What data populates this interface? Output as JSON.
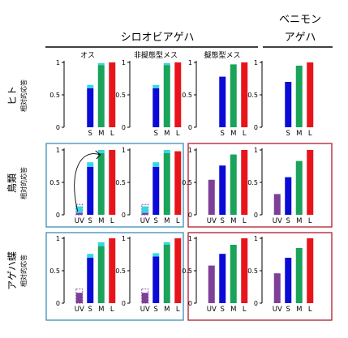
{
  "header": {
    "group_left": "シロオビアゲハ",
    "group_right_line1": "ベニモン",
    "group_right_line2": "アゲハ",
    "columns": [
      "オス",
      "非擬態型メス",
      "擬態型メス",
      ""
    ]
  },
  "rows": [
    {
      "line1": "ヒト",
      "line2": "相対的応答"
    },
    {
      "line1": "鳥類",
      "line2": "相対的応答"
    },
    {
      "line1": "アゲハ蝶",
      "line2": "相対的応答"
    }
  ],
  "colors": {
    "UV": "#7e3f98",
    "S": "#0b0bd8",
    "M": "#1aa35a",
    "L": "#e8141c",
    "cap": "#32d8e8",
    "box_blue": "#3a8fb4",
    "box_red": "#b01a2e"
  },
  "chart_data": {
    "type": "bar",
    "y_ticks": [
      "0",
      "0.5",
      "1"
    ],
    "ylim": [
      0,
      1
    ],
    "grid": false,
    "panels": [
      {
        "row": 0,
        "col": 0,
        "categories": [
          "S",
          "M",
          "L"
        ],
        "values": [
          0.6,
          0.96,
          1.0
        ],
        "caps": [
          0.05,
          0.03,
          0
        ]
      },
      {
        "row": 0,
        "col": 1,
        "categories": [
          "S",
          "M",
          "L"
        ],
        "values": [
          0.6,
          0.96,
          1.0
        ],
        "caps": [
          0.05,
          0.03,
          0
        ]
      },
      {
        "row": 0,
        "col": 2,
        "categories": [
          "S",
          "M",
          "L"
        ],
        "values": [
          0.78,
          0.97,
          1.0
        ],
        "caps": [
          0,
          0,
          0
        ]
      },
      {
        "row": 0,
        "col": 3,
        "categories": [
          "S",
          "M",
          "L"
        ],
        "values": [
          0.7,
          0.95,
          1.0
        ],
        "caps": [
          0,
          0,
          0
        ]
      },
      {
        "row": 1,
        "col": 0,
        "categories": [
          "UV",
          "S",
          "M",
          "L"
        ],
        "values": [
          0.03,
          0.74,
          0.95,
          1.0
        ],
        "caps": [
          0.1,
          0.07,
          0.05,
          0
        ],
        "ghost_uv": 0.16,
        "arrow": true
      },
      {
        "row": 1,
        "col": 1,
        "categories": [
          "UV",
          "S",
          "M",
          "L"
        ],
        "values": [
          0.03,
          0.74,
          0.95,
          0.98
        ],
        "caps": [
          0.1,
          0.07,
          0.05,
          0
        ],
        "ghost_uv": 0.16
      },
      {
        "row": 1,
        "col": 2,
        "categories": [
          "UV",
          "S",
          "M",
          "L"
        ],
        "values": [
          0.54,
          0.76,
          0.93,
          1.0
        ],
        "caps": [
          0,
          0,
          0,
          0
        ]
      },
      {
        "row": 1,
        "col": 3,
        "categories": [
          "UV",
          "S",
          "M",
          "L"
        ],
        "values": [
          0.32,
          0.58,
          0.83,
          1.0
        ],
        "caps": [
          0,
          0,
          0,
          0
        ]
      },
      {
        "row": 2,
        "col": 0,
        "categories": [
          "UV",
          "S",
          "M",
          "L"
        ],
        "values": [
          0.16,
          0.7,
          0.88,
          1.0
        ],
        "caps": [
          0,
          0.06,
          0.06,
          0
        ],
        "ghost_uv": 0.22
      },
      {
        "row": 2,
        "col": 1,
        "categories": [
          "UV",
          "S",
          "M",
          "L"
        ],
        "values": [
          0.16,
          0.72,
          0.9,
          1.0
        ],
        "caps": [
          0,
          0.05,
          0.04,
          0
        ],
        "ghost_uv": 0.22
      },
      {
        "row": 2,
        "col": 2,
        "categories": [
          "UV",
          "S",
          "M",
          "L"
        ],
        "values": [
          0.58,
          0.76,
          0.9,
          1.0
        ],
        "caps": [
          0,
          0,
          0,
          0
        ]
      },
      {
        "row": 2,
        "col": 3,
        "categories": [
          "UV",
          "S",
          "M",
          "L"
        ],
        "values": [
          0.46,
          0.7,
          0.85,
          1.0
        ],
        "caps": [
          0,
          0,
          0,
          0
        ]
      }
    ]
  }
}
